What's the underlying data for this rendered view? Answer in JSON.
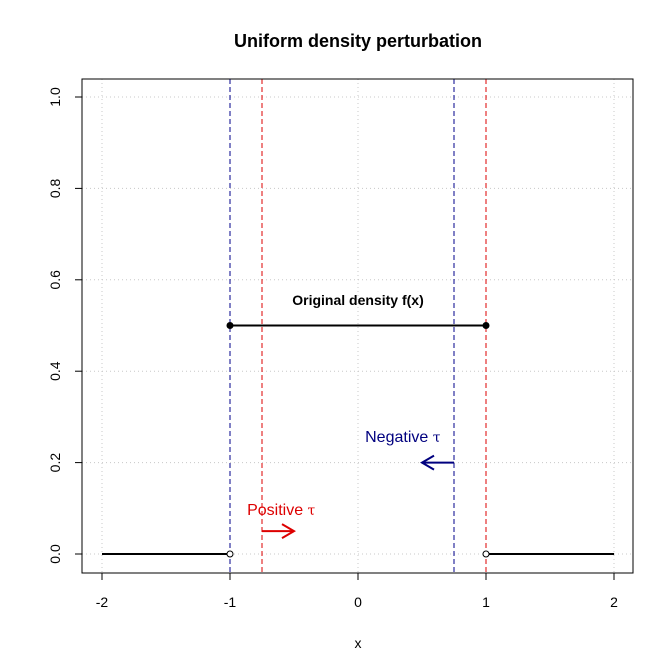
{
  "chart_data": {
    "type": "line",
    "title": "Uniform density perturbation",
    "xlabel": "x",
    "ylabel": "",
    "xlim": [
      -2,
      2
    ],
    "ylim": [
      0,
      1
    ],
    "x_ticks": [
      -2,
      -1,
      0,
      1,
      2
    ],
    "y_ticks": [
      0.0,
      0.2,
      0.4,
      0.6,
      0.8,
      1.0
    ],
    "x_tick_labels": [
      "-2",
      "-1",
      "0",
      "1",
      "2"
    ],
    "y_tick_labels": [
      "0.0",
      "0.2",
      "0.4",
      "0.6",
      "0.8",
      "1.0"
    ],
    "grid": true,
    "series": [
      {
        "segments": [
          {
            "x": [
              -2,
              -1
            ],
            "y": [
              0,
              0
            ],
            "end": "open"
          },
          {
            "x": [
              -1,
              1
            ],
            "y": [
              0.5,
              0.5
            ],
            "start": "closed",
            "end": "closed"
          },
          {
            "x": [
              1,
              2
            ],
            "y": [
              0,
              0
            ],
            "start": "open"
          }
        ],
        "color": "#000000"
      }
    ],
    "vlines": [
      {
        "x": -1,
        "color": "#00008b"
      },
      {
        "x": 0.75,
        "color": "#00008b"
      },
      {
        "x": -0.75,
        "color": "#dd0000"
      },
      {
        "x": 1,
        "color": "#dd0000"
      }
    ],
    "annotations": [
      {
        "text": "Original density f(x)",
        "x": 0,
        "y": 0.545,
        "color": "#000000"
      },
      {
        "text": "Negative",
        "symbol": "τ",
        "x": 0.35,
        "y": 0.245,
        "color": "#00007f"
      },
      {
        "text": "Positive",
        "symbol": "τ",
        "x": -0.6,
        "y": 0.085,
        "color": "#dd0000"
      }
    ],
    "arrows": [
      {
        "from": [
          0.75,
          0.2
        ],
        "to": [
          0.5,
          0.2
        ],
        "color": "#00007f"
      },
      {
        "from": [
          -0.75,
          0.05
        ],
        "to": [
          -0.5,
          0.05
        ],
        "color": "#dd0000"
      }
    ]
  }
}
